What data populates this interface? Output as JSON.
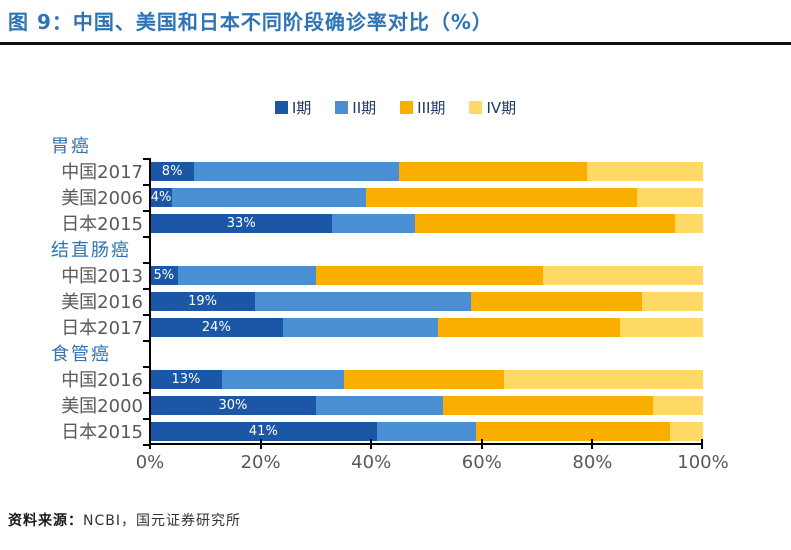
{
  "figure": {
    "title": "图 9：中国、美国和日本不同阶段确诊率对比（%）",
    "source_prefix": "资料来源：",
    "source_text": "NCBI，国元证券研究所"
  },
  "colors": {
    "stage1": "#1B57A6",
    "stage2": "#4A8FD3",
    "stage3": "#F9AE00",
    "stage4": "#FFD966",
    "title_blue": "#2E74B5",
    "axis_gray": "#595959"
  },
  "chart_data": {
    "type": "bar",
    "orientation": "horizontal",
    "stacking": "100%-stacked",
    "title": "中国、美国和日本不同阶段确诊率对比（%）",
    "xlim": [
      0,
      100
    ],
    "x_ticks": [
      "0%",
      "20%",
      "40%",
      "60%",
      "80%",
      "100%"
    ],
    "grid": false,
    "legend_position": "top",
    "legend": [
      {
        "label": "I期",
        "color": "#1B57A6"
      },
      {
        "label": "II期",
        "color": "#4A8FD3"
      },
      {
        "label": "III期",
        "color": "#F9AE00"
      },
      {
        "label": "IV期",
        "color": "#FFD966"
      }
    ],
    "groups": [
      {
        "name": "胃癌",
        "rows": [
          {
            "label": "中国2017",
            "data_label": "8%",
            "values": [
              8,
              37,
              34,
              21
            ]
          },
          {
            "label": "美国2006",
            "data_label": "4%",
            "values": [
              4,
              35,
              49,
              12
            ]
          },
          {
            "label": "日本2015",
            "data_label": "33%",
            "values": [
              33,
              15,
              47,
              5
            ]
          }
        ]
      },
      {
        "name": "结直肠癌",
        "rows": [
          {
            "label": "中国2013",
            "data_label": "5%",
            "values": [
              5,
              25,
              41,
              29
            ]
          },
          {
            "label": "美国2016",
            "data_label": "19%",
            "values": [
              19,
              39,
              31,
              11
            ]
          },
          {
            "label": "日本2017",
            "data_label": "24%",
            "values": [
              24,
              28,
              33,
              15
            ]
          }
        ]
      },
      {
        "name": "食管癌",
        "rows": [
          {
            "label": "中国2016",
            "data_label": "13%",
            "values": [
              13,
              22,
              29,
              36
            ]
          },
          {
            "label": "美国2000",
            "data_label": "30%",
            "values": [
              30,
              23,
              38,
              9
            ]
          },
          {
            "label": "日本2015",
            "data_label": "41%",
            "values": [
              41,
              18,
              35,
              6
            ]
          }
        ]
      }
    ]
  }
}
